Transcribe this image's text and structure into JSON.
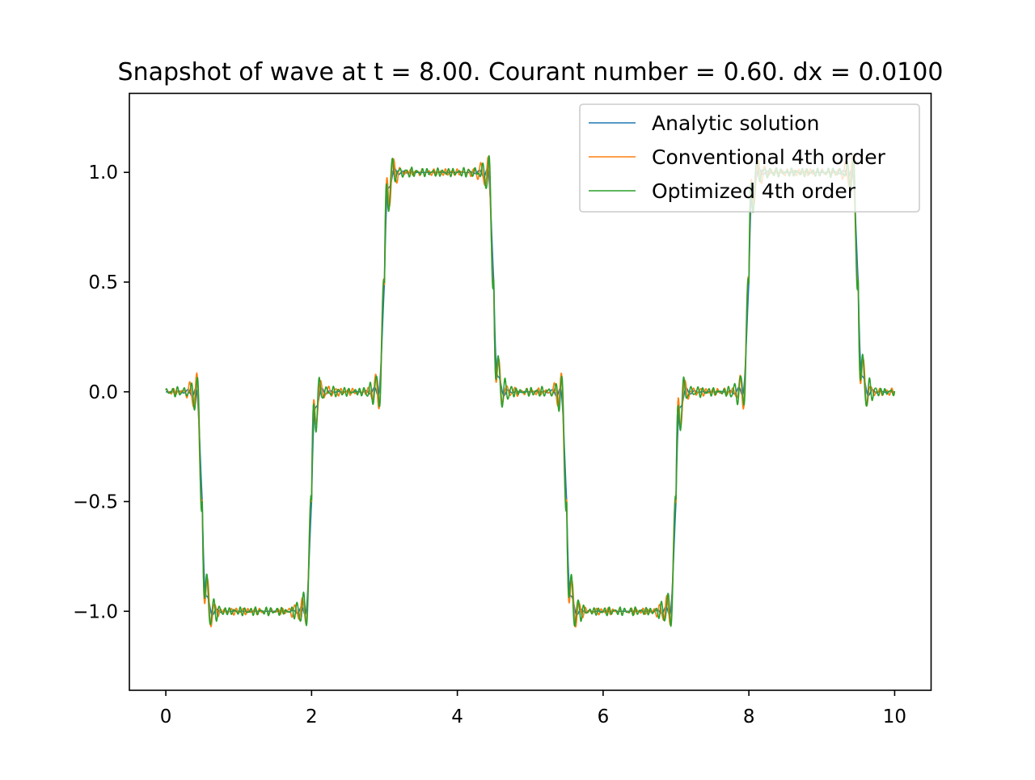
{
  "chart_data": {
    "type": "line",
    "title": "Snapshot of wave at t = 8.00. Courant number = 0.60. dx = 0.0100",
    "xlabel": "",
    "ylabel": "",
    "xlim": [
      -0.5,
      10.5
    ],
    "ylim": [
      -1.36,
      1.36
    ],
    "x_ticks": [
      0,
      2,
      4,
      6,
      8,
      10
    ],
    "x_tick_labels": [
      "0",
      "2",
      "4",
      "6",
      "8",
      "10"
    ],
    "y_ticks": [
      1.0,
      0.5,
      0.0,
      -0.5,
      -1.0
    ],
    "y_tick_labels": [
      "1.0",
      "0.5",
      "0.0",
      "−0.5",
      "−1.0"
    ],
    "grid": false,
    "legend_position": "top-right",
    "x_range": [
      0,
      10
    ],
    "transitions_x": [
      0.5,
      2.0,
      3.0,
      4.5,
      5.5,
      7.0,
      8.0,
      9.5
    ],
    "levels_between_transitions": [
      0,
      -1,
      0,
      1,
      0,
      -1,
      0,
      1,
      0
    ],
    "series": [
      {
        "name": "Analytic solution",
        "color": "#1f77b4",
        "overshoot": 0.09
      },
      {
        "name": "Conventional 4th order",
        "color": "#ff7f0e",
        "overshoot": 0.24
      },
      {
        "name": "Optimized 4th order",
        "color": "#2ca02c",
        "overshoot": 0.24
      }
    ]
  }
}
